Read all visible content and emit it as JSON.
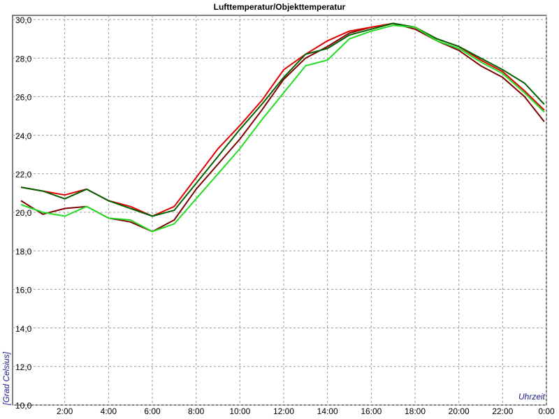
{
  "chart_data": {
    "type": "line",
    "title": "Lufttemperatur/Objekttemperatur",
    "y_label": "[Grad Celsius]",
    "x_label": "Uhrzeit",
    "x": [
      0,
      1,
      2,
      3,
      4,
      5,
      6,
      7,
      8,
      9,
      10,
      11,
      12,
      13,
      14,
      15,
      16,
      17,
      18,
      19,
      20,
      21,
      22,
      23,
      23.9
    ],
    "series": [
      {
        "color": "#800000",
        "values": [
          20.6,
          19.9,
          20.2,
          20.3,
          19.7,
          19.5,
          19.0,
          19.6,
          21.2,
          22.5,
          23.8,
          25.3,
          26.9,
          28.0,
          28.6,
          29.3,
          29.6,
          29.8,
          29.5,
          28.9,
          28.4,
          27.6,
          27.0,
          26.0,
          24.7
        ]
      },
      {
        "color": "#e00000",
        "values": [
          21.3,
          21.1,
          20.9,
          21.2,
          20.6,
          20.3,
          19.8,
          20.3,
          21.8,
          23.3,
          24.5,
          25.8,
          27.4,
          28.2,
          28.9,
          29.4,
          29.6,
          29.8,
          29.6,
          29.0,
          28.6,
          27.9,
          27.3,
          26.3,
          25.3
        ]
      },
      {
        "color": "#006000",
        "values": [
          21.3,
          21.1,
          20.7,
          21.2,
          20.6,
          20.2,
          19.8,
          20.1,
          21.5,
          22.9,
          24.3,
          25.6,
          27.0,
          28.2,
          28.5,
          29.2,
          29.5,
          29.8,
          29.6,
          29.0,
          28.6,
          28.0,
          27.4,
          26.7,
          25.6
        ]
      },
      {
        "color": "#22dd22",
        "values": [
          20.4,
          20.0,
          19.8,
          20.3,
          19.7,
          19.6,
          19.0,
          19.4,
          20.7,
          22.0,
          23.3,
          24.8,
          26.2,
          27.6,
          27.9,
          29.0,
          29.4,
          29.7,
          29.6,
          28.9,
          28.5,
          27.8,
          27.2,
          26.2,
          25.2
        ]
      }
    ],
    "xlim": [
      0,
      24
    ],
    "xticks": [
      {
        "value": 2,
        "label": "2:00"
      },
      {
        "value": 4,
        "label": "4:00"
      },
      {
        "value": 6,
        "label": "6:00"
      },
      {
        "value": 8,
        "label": "8:00"
      },
      {
        "value": 10,
        "label": "10:00"
      },
      {
        "value": 12,
        "label": "12:00"
      },
      {
        "value": 14,
        "label": "14:00"
      },
      {
        "value": 16,
        "label": "16:00"
      },
      {
        "value": 18,
        "label": "18:00"
      },
      {
        "value": 20,
        "label": "20:00"
      },
      {
        "value": 22,
        "label": "22:00"
      },
      {
        "value": 24,
        "label": "0:00"
      }
    ],
    "ylim": [
      10,
      30
    ],
    "yticks": [
      {
        "value": 10,
        "label": "10,0"
      },
      {
        "value": 12,
        "label": "12,0"
      },
      {
        "value": 14,
        "label": "14,0"
      },
      {
        "value": 16,
        "label": "16,0"
      },
      {
        "value": 18,
        "label": "18,0"
      },
      {
        "value": 20,
        "label": "20,0"
      },
      {
        "value": 22,
        "label": "22,0"
      },
      {
        "value": 24,
        "label": "24,0"
      },
      {
        "value": 26,
        "label": "26,0"
      },
      {
        "value": 28,
        "label": "28,0"
      },
      {
        "value": 30,
        "label": "30,0"
      }
    ],
    "grid": true
  }
}
